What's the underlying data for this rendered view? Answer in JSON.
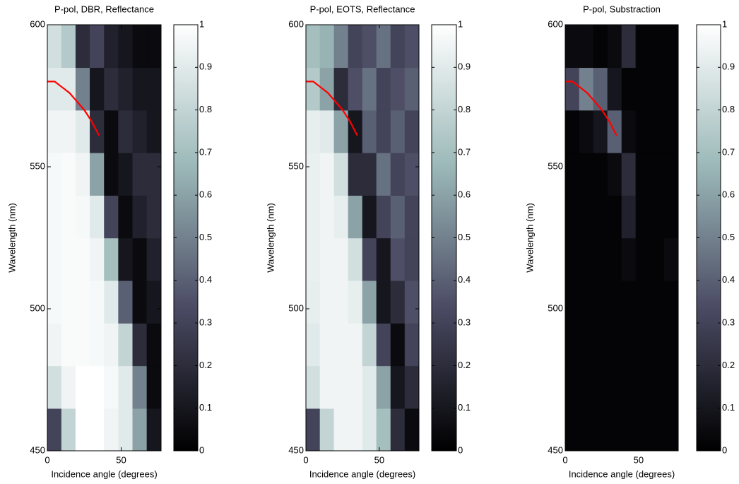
{
  "chart_data": [
    {
      "type": "heatmap",
      "title": "P-pol, DBR, Reflectance",
      "xlabel": "Incidence angle (degrees)",
      "ylabel": "Wavelength (nm)",
      "x": [
        4.8,
        14.4,
        24,
        33.7,
        43.3,
        52.9,
        62.6,
        72.2
      ],
      "y": [
        457.5,
        472.5,
        487.5,
        502.5,
        517.5,
        532.5,
        547.5,
        562.5,
        577.5,
        592.5
      ],
      "z": [
        [
          0.3,
          0.8,
          1,
          1,
          0.95,
          0.9,
          0.6,
          0.1
        ],
        [
          0.85,
          0.95,
          1,
          1,
          0.97,
          0.9,
          0.5,
          0.05
        ],
        [
          0.95,
          0.98,
          0.98,
          0.97,
          0.95,
          0.8,
          0.2,
          0.05
        ],
        [
          0.97,
          0.98,
          0.98,
          0.97,
          0.9,
          0.4,
          0.05,
          0.1
        ],
        [
          0.97,
          0.98,
          0.98,
          0.95,
          0.7,
          0.1,
          0.05,
          0.15
        ],
        [
          0.97,
          0.98,
          0.97,
          0.9,
          0.3,
          0.05,
          0.15,
          0.2
        ],
        [
          0.97,
          0.98,
          0.95,
          0.6,
          0.05,
          0.1,
          0.2,
          0.2
        ],
        [
          0.95,
          0.95,
          0.9,
          0.2,
          0.05,
          0.2,
          0.15,
          0.1
        ],
        [
          0.9,
          0.9,
          0.5,
          0.1,
          0.2,
          0.15,
          0.1,
          0.1
        ],
        [
          0.85,
          0.75,
          0.2,
          0.3,
          0.15,
          0.1,
          0.05,
          0.05
        ]
      ],
      "xlim": [
        0,
        77
      ],
      "ylim": [
        450,
        600
      ],
      "xticks": [
        0,
        50
      ],
      "yticks": [
        450,
        500,
        550,
        600
      ],
      "clim": [
        0,
        1
      ],
      "cticks": [
        0,
        0.1,
        0.2,
        0.3,
        0.4,
        0.5,
        0.6,
        0.7,
        0.8,
        0.9,
        1
      ],
      "colormap": [
        "#000000",
        "#4a4a63",
        "#9bb8b8",
        "#ffffff"
      ],
      "overlay": {
        "color": "#ff0000",
        "x": [
          0,
          5,
          10,
          15,
          20,
          25,
          30,
          35
        ],
        "y": [
          580,
          580,
          578,
          576,
          573,
          570,
          566,
          561
        ]
      }
    },
    {
      "type": "heatmap",
      "title": "P-pol, EOTS, Reflectance",
      "xlabel": "Incidence angle (degrees)",
      "ylabel": "Wavelength (nm)",
      "x": [
        4.8,
        14.4,
        24,
        33.7,
        43.3,
        52.9,
        62.6,
        72.2
      ],
      "y": [
        457.5,
        472.5,
        487.5,
        502.5,
        517.5,
        532.5,
        547.5,
        562.5,
        577.5,
        592.5
      ],
      "z": [
        [
          0.3,
          0.8,
          0.95,
          0.95,
          0.9,
          0.7,
          0.2,
          0.05
        ],
        [
          0.85,
          0.95,
          0.95,
          0.95,
          0.9,
          0.6,
          0.1,
          0.2
        ],
        [
          0.9,
          0.95,
          0.95,
          0.95,
          0.8,
          0.3,
          0.05,
          0.3
        ],
        [
          0.92,
          0.95,
          0.95,
          0.92,
          0.6,
          0.1,
          0.2,
          0.35
        ],
        [
          0.93,
          0.95,
          0.95,
          0.85,
          0.3,
          0.1,
          0.35,
          0.3
        ],
        [
          0.93,
          0.95,
          0.92,
          0.6,
          0.1,
          0.3,
          0.4,
          0.3
        ],
        [
          0.93,
          0.95,
          0.85,
          0.2,
          0.2,
          0.45,
          0.3,
          0.35
        ],
        [
          0.92,
          0.9,
          0.6,
          0.1,
          0.4,
          0.3,
          0.4,
          0.3
        ],
        [
          0.75,
          0.6,
          0.2,
          0.35,
          0.45,
          0.3,
          0.35,
          0.4
        ],
        [
          0.7,
          0.65,
          0.5,
          0.3,
          0.35,
          0.45,
          0.3,
          0.35
        ]
      ],
      "xlim": [
        0,
        77
      ],
      "ylim": [
        450,
        600
      ],
      "xticks": [
        0,
        50
      ],
      "yticks": [
        450,
        500,
        550,
        600
      ],
      "clim": [
        0,
        1
      ],
      "cticks": [
        0,
        0.1,
        0.2,
        0.3,
        0.4,
        0.5,
        0.6,
        0.7,
        0.8,
        0.9,
        1
      ],
      "colormap": [
        "#000000",
        "#4a4a63",
        "#9bb8b8",
        "#ffffff"
      ],
      "overlay": {
        "color": "#ff0000",
        "x": [
          0,
          5,
          10,
          15,
          20,
          25,
          30,
          35
        ],
        "y": [
          580,
          580,
          578,
          576,
          573,
          570,
          566,
          561
        ]
      }
    },
    {
      "type": "heatmap",
      "title": "P-pol, Substraction",
      "xlabel": "Incidence angle (degrees)",
      "ylabel": "Wavelength (nm)",
      "x": [
        4.8,
        14.4,
        24,
        33.7,
        43.3,
        52.9,
        62.6,
        72.2
      ],
      "y": [
        457.5,
        472.5,
        487.5,
        502.5,
        517.5,
        532.5,
        547.5,
        562.5,
        577.5,
        592.5
      ],
      "z": [
        [
          0.02,
          0.02,
          0.02,
          0.02,
          0.02,
          0.02,
          0.02,
          0.02
        ],
        [
          0.02,
          0.02,
          0.02,
          0.02,
          0.02,
          0.02,
          0.02,
          0.02
        ],
        [
          0.02,
          0.02,
          0.02,
          0.02,
          0.02,
          0.02,
          0.02,
          0.02
        ],
        [
          0.02,
          0.02,
          0.02,
          0.02,
          0.02,
          0.02,
          0.02,
          0.02
        ],
        [
          0.02,
          0.02,
          0.02,
          0.02,
          0.05,
          0.02,
          0.02,
          0.05
        ],
        [
          0.02,
          0.02,
          0.02,
          0.02,
          0.15,
          0.02,
          0.02,
          0.02
        ],
        [
          0.02,
          0.02,
          0.02,
          0.05,
          0.2,
          0.02,
          0.02,
          0.02
        ],
        [
          0.02,
          0.05,
          0.1,
          0.4,
          0.05,
          0.02,
          0.02,
          0.02
        ],
        [
          0.3,
          0.5,
          0.4,
          0.1,
          0.02,
          0.02,
          0.02,
          0.02
        ],
        [
          0.05,
          0.05,
          0.02,
          0.05,
          0.2,
          0.02,
          0.02,
          0.02
        ]
      ],
      "xlim": [
        0,
        77
      ],
      "ylim": [
        450,
        600
      ],
      "xticks": [
        0,
        50
      ],
      "yticks": [
        450,
        500,
        550,
        600
      ],
      "clim": [
        0,
        1
      ],
      "cticks": [
        0,
        0.1,
        0.2,
        0.3,
        0.4,
        0.5,
        0.6,
        0.7,
        0.8,
        0.9,
        1
      ],
      "colormap": [
        "#000000",
        "#4a4a63",
        "#9bb8b8",
        "#ffffff"
      ],
      "overlay": {
        "color": "#ff0000",
        "x": [
          0,
          5,
          10,
          15,
          20,
          25,
          30,
          35
        ],
        "y": [
          580,
          580,
          578,
          576,
          573,
          570,
          566,
          561
        ]
      }
    }
  ]
}
